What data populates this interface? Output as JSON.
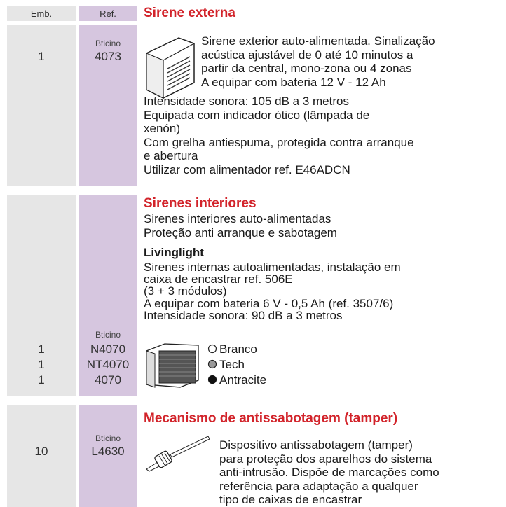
{
  "header": {
    "emb_label": "Emb.",
    "ref_label": "Ref."
  },
  "sections": [
    {
      "title": "Sirene externa",
      "brand": "Bticino",
      "embs": [
        "1"
      ],
      "refs": [
        "4073"
      ],
      "intro": [
        "Sirene exterior auto-alimentada. Sinalização",
        "acústica ajustável de 0 até 10 minutos a",
        "partir da central, mono-zona ou 4 zonas",
        "A equipar com bateria 12 V - 12 Ah"
      ],
      "body": [
        "Intensidade sonora: 105 dB a 3 metros",
        "Equipada com indicador ótico (lâmpada de",
        "xenón)",
        "Com grelha antiespuma, protegida contra arranque",
        "e abertura",
        "Utilizar com alimentador ref. E46ADCN"
      ]
    },
    {
      "title": "Sirenes interiores",
      "brand": "Bticino",
      "intro": [
        "Sirenes interiores auto-alimentadas",
        "Proteção anti arranque e sabotagem"
      ],
      "subtitle": "Livinglight",
      "body": [
        "Sirenes internas autoalimentadas, instalação em",
        "caixa de encastrar ref. 506E",
        "(3 + 3 módulos)",
        "A equipar com bateria 6 V - 0,5 Ah (ref. 3507/6)",
        "Intensidade sonora: 90 dB a 3 metros"
      ],
      "variants": [
        {
          "emb": "1",
          "ref": "N4070",
          "name": "Branco"
        },
        {
          "emb": "1",
          "ref": "NT4070",
          "name": "Tech"
        },
        {
          "emb": "1",
          "ref": "4070",
          "name": "Antracite"
        }
      ]
    },
    {
      "title": "Mecanismo de antissabotagem (tamper)",
      "brand": "Bticino",
      "embs": [
        "10"
      ],
      "refs": [
        "L4630"
      ],
      "intro": [
        "Dispositivo antissabotagem (tamper)",
        "para proteção dos aparelhos do sistema",
        "anti-intrusão. Dispõe de marcações como",
        "referência para adaptação a qualquer",
        "tipo de caixas de encastrar"
      ]
    }
  ]
}
